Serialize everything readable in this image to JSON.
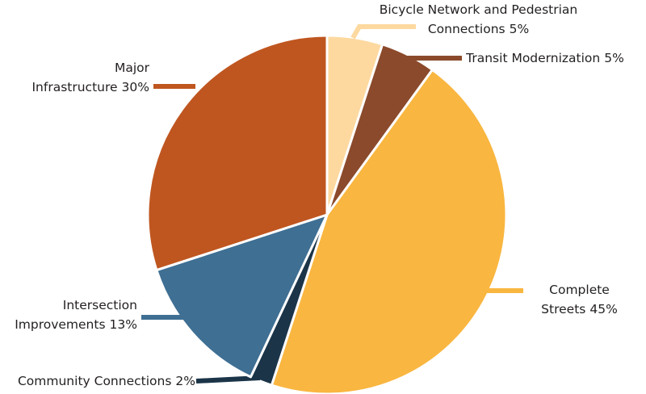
{
  "chart_data": {
    "type": "pie",
    "categories": [
      "Bicycle Network and Pedestrian Connections",
      "Transit Modernization",
      "Complete Streets",
      "Community Connections",
      "Intersection Improvements",
      "Major Infrastructure"
    ],
    "values": [
      5,
      5,
      45,
      2,
      13,
      30
    ],
    "value_labels": [
      "5%",
      "5%",
      "45%",
      "2%",
      "13%",
      "30%"
    ],
    "colors": [
      "#fdd9a0",
      "#8b4a2b",
      "#f9b640",
      "#1b3448",
      "#3f6f93",
      "#bf5620"
    ]
  }
}
